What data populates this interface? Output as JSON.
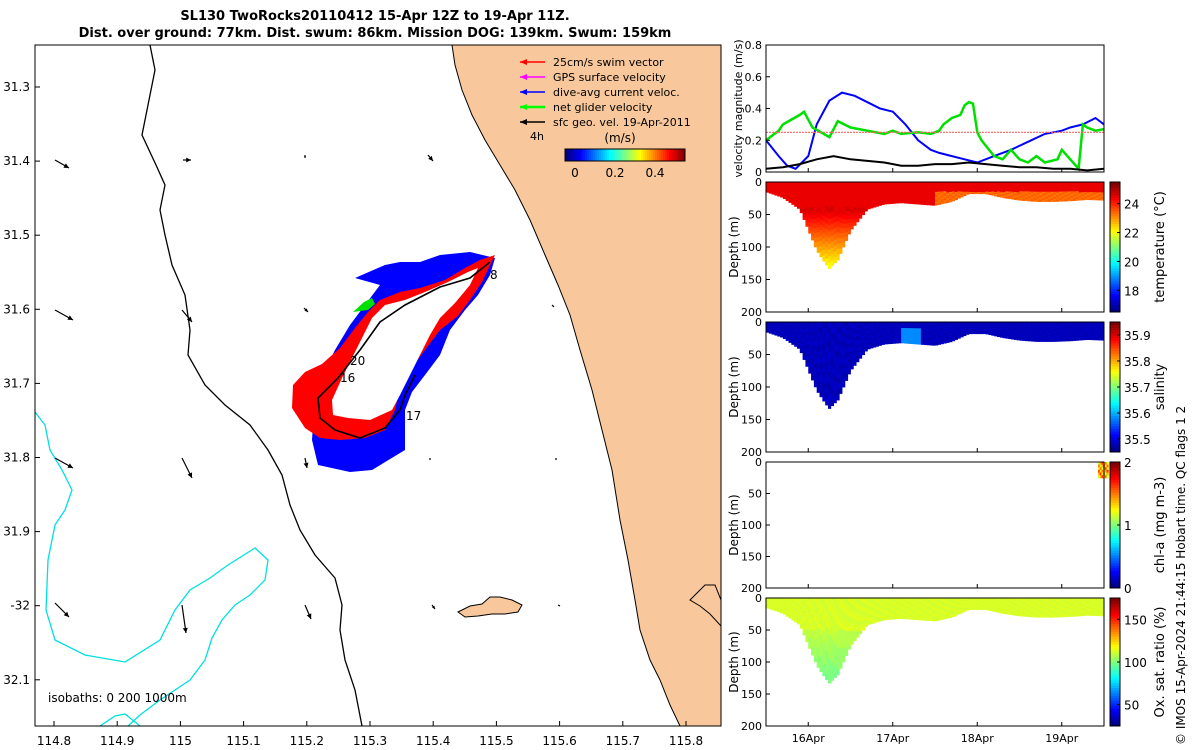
{
  "title": {
    "line1": "SL130 TwoRocks20110412 15-Apr 12Z to 19-Apr 11Z.",
    "line2": "Dist. over ground: 77km. Dist. swum: 86km. Mission DOG: 139km. Swum: 159km"
  },
  "map": {
    "lon_ticks": [
      "114.8",
      "114.9",
      "115",
      "115.1",
      "115.2",
      "115.3",
      "115.4",
      "115.5",
      "115.6",
      "115.7",
      "115.8"
    ],
    "lat_ticks": [
      "31.3",
      "31.4",
      "31.5",
      "31.6",
      "31.7",
      "31.8",
      "31.9",
      "-32",
      "32.1"
    ],
    "legend": [
      {
        "label": "25cm/s swim vector",
        "color": "#ff0000"
      },
      {
        "label": "GPS surface velocity",
        "color": "#ff00ff"
      },
      {
        "label": "dive-avg current veloc.",
        "color": "#0000ff"
      },
      {
        "label": "net glider velocity",
        "color": "#00ff00"
      },
      {
        "label": "sfc geo. vel. 19-Apr-2011",
        "color": "#000000"
      }
    ],
    "time_label": "4h",
    "colorbar": {
      "unit": "(m/s)",
      "ticks": [
        "0",
        "0.2",
        "0.4"
      ]
    },
    "isobath_label": "isobaths: 0   200  1000m",
    "day_labels": [
      "8",
      "20",
      "16",
      "17"
    ],
    "colors": {
      "land": "#f8c89c",
      "isobath_200": "#000000",
      "isobath_1000": "#00e0e0"
    }
  },
  "chart_data": [
    {
      "type": "line",
      "ylabel": "velocity magnitude (m/s)",
      "ylim": [
        0,
        0.8
      ],
      "yticks": [
        "0",
        "0.2",
        "0.4",
        "0.6",
        "0.8"
      ],
      "series": [
        {
          "color": "#0000ff",
          "x": [
            15.5,
            15.65,
            15.75,
            15.85,
            16.0,
            16.1,
            16.25,
            16.4,
            16.55,
            16.7,
            16.85,
            17.0,
            17.15,
            17.3,
            17.45,
            17.55,
            17.7,
            17.85,
            18.0,
            18.2,
            18.4,
            18.6,
            18.8,
            19.0,
            19.1,
            19.25,
            19.4,
            19.5
          ],
          "values": [
            0.2,
            0.1,
            0.04,
            0.02,
            0.1,
            0.3,
            0.45,
            0.5,
            0.48,
            0.44,
            0.4,
            0.38,
            0.3,
            0.2,
            0.14,
            0.12,
            0.1,
            0.08,
            0.06,
            0.1,
            0.14,
            0.19,
            0.24,
            0.26,
            0.28,
            0.3,
            0.34,
            0.3
          ]
        },
        {
          "color": "#00e000",
          "x": [
            15.5,
            15.6,
            15.65,
            15.7,
            15.8,
            15.9,
            15.95,
            16.05,
            16.25,
            16.35,
            16.5,
            16.7,
            16.9,
            17.0,
            17.1,
            17.3,
            17.45,
            17.55,
            17.6,
            17.7,
            17.8,
            17.85,
            17.9,
            17.95,
            18.0,
            18.05,
            18.2,
            18.3,
            18.4,
            18.5,
            18.6,
            18.7,
            18.8,
            18.95,
            19.0,
            19.2,
            19.25,
            19.3,
            19.4,
            19.5
          ],
          "values": [
            0.2,
            0.24,
            0.26,
            0.3,
            0.33,
            0.36,
            0.38,
            0.28,
            0.22,
            0.32,
            0.28,
            0.26,
            0.24,
            0.26,
            0.24,
            0.25,
            0.24,
            0.26,
            0.3,
            0.34,
            0.36,
            0.42,
            0.44,
            0.43,
            0.25,
            0.2,
            0.1,
            0.08,
            0.14,
            0.08,
            0.06,
            0.1,
            0.06,
            0.08,
            0.14,
            0.02,
            0.3,
            0.28,
            0.26,
            0.27
          ]
        },
        {
          "color": "#000000",
          "x": [
            15.5,
            15.7,
            15.9,
            16.1,
            16.3,
            16.5,
            16.7,
            16.9,
            17.1,
            17.3,
            17.5,
            17.7,
            17.9,
            18.1,
            18.3,
            18.5,
            18.7,
            18.9,
            19.1,
            19.3,
            19.5
          ],
          "values": [
            0.02,
            0.03,
            0.05,
            0.08,
            0.1,
            0.08,
            0.07,
            0.06,
            0.04,
            0.04,
            0.05,
            0.05,
            0.06,
            0.05,
            0.04,
            0.03,
            0.03,
            0.02,
            0.02,
            0.01,
            0.02
          ]
        },
        {
          "color": "#ff6060",
          "x": [
            15.5,
            19.5
          ],
          "values": [
            0.25,
            0.25
          ]
        }
      ]
    },
    {
      "type": "heatmap",
      "variable": "temperature",
      "ylabel": "Depth (m)",
      "ylim": [
        200,
        0
      ],
      "yticks": [
        "0",
        "50",
        "100",
        "150",
        "200"
      ],
      "cbar_label": "temperature (°C)",
      "cbar_ticks": [
        "18",
        "20",
        "22",
        "24"
      ],
      "cbar_range": [
        16.5,
        25.5
      ],
      "deep_value": 22.2,
      "surface_value": 24.8,
      "depth_profile": {
        "x": [
          15.5,
          15.7,
          15.9,
          16.1,
          16.2,
          16.25,
          16.35,
          16.5,
          16.7,
          16.9,
          17.1,
          17.3,
          17.5,
          17.7,
          17.9,
          18.1,
          18.3,
          18.5,
          18.7,
          18.9,
          19.1,
          19.3,
          19.5
        ],
        "values": [
          15,
          24,
          42,
          105,
          125,
          133,
          120,
          75,
          42,
          34,
          32,
          34,
          36,
          30,
          18,
          18,
          24,
          28,
          30,
          30,
          29,
          27,
          28
        ]
      }
    },
    {
      "type": "heatmap",
      "variable": "salinity",
      "ylabel": "Depth (m)",
      "ylim": [
        200,
        0
      ],
      "yticks": [
        "0",
        "50",
        "100",
        "150",
        "200"
      ],
      "cbar_label": "salinity",
      "cbar_ticks": [
        "35.5",
        "35.6",
        "35.7",
        "35.8",
        "35.9"
      ],
      "cbar_range": [
        35.45,
        35.95
      ],
      "value": 35.47,
      "depth_profile": {
        "x": [
          15.5,
          15.7,
          15.9,
          16.1,
          16.2,
          16.25,
          16.35,
          16.5,
          16.7,
          16.9,
          17.1,
          17.3,
          17.5,
          17.7,
          17.9,
          18.1,
          18.3,
          18.5,
          18.7,
          18.9,
          19.1,
          19.3,
          19.5
        ],
        "values": [
          15,
          24,
          42,
          105,
          125,
          133,
          120,
          75,
          42,
          34,
          32,
          34,
          36,
          30,
          18,
          18,
          24,
          28,
          30,
          30,
          29,
          27,
          28
        ]
      }
    },
    {
      "type": "heatmap",
      "variable": "chl-a",
      "ylabel": "Depth (m)",
      "ylim": [
        200,
        0
      ],
      "yticks": [
        "0",
        "50",
        "100",
        "150",
        "200"
      ],
      "cbar_label": "chl-a (mg m-3)",
      "cbar_ticks": [
        "0",
        "1",
        "2"
      ],
      "cbar_range": [
        0,
        2
      ],
      "patch": {
        "x": [
          19.43,
          19.55
        ],
        "depth": [
          0,
          25
        ],
        "value": 1.4
      }
    },
    {
      "type": "heatmap",
      "variable": "oxygen",
      "ylabel": "Depth (m)",
      "ylim": [
        200,
        0
      ],
      "yticks": [
        "0",
        "50",
        "100",
        "150",
        "200"
      ],
      "cbar_label": "Ox. sat. ratio (%)",
      "cbar_ticks": [
        "50",
        "100",
        "150"
      ],
      "cbar_range": [
        25,
        175
      ],
      "value": 110,
      "depth_profile": {
        "x": [
          15.5,
          15.7,
          15.9,
          16.1,
          16.2,
          16.25,
          16.35,
          16.5,
          16.7,
          16.9,
          17.1,
          17.3,
          17.5,
          17.7,
          17.9,
          18.1,
          18.3,
          18.5,
          18.7,
          18.9,
          19.1,
          19.3,
          19.5
        ],
        "values": [
          15,
          24,
          42,
          105,
          125,
          133,
          120,
          75,
          42,
          34,
          32,
          34,
          36,
          30,
          18,
          18,
          24,
          28,
          30,
          30,
          29,
          27,
          28
        ]
      },
      "xticks": [
        "16Apr",
        "17Apr",
        "18Apr",
        "19Apr"
      ]
    }
  ],
  "footer": "© IMOS 15-Apr-2024 21:44:15 Hobart time. QC flags 1  2"
}
